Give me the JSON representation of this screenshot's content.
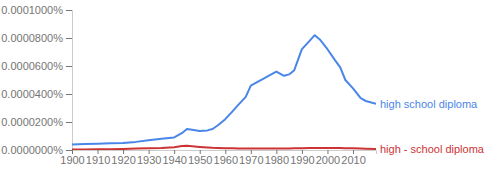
{
  "chart_data": {
    "type": "line",
    "x": [
      1900,
      1905,
      1910,
      1915,
      1920,
      1925,
      1930,
      1935,
      1940,
      1943,
      1945,
      1947,
      1950,
      1953,
      1955,
      1957,
      1960,
      1963,
      1965,
      1968,
      1970,
      1973,
      1975,
      1978,
      1980,
      1983,
      1985,
      1987,
      1990,
      1993,
      1995,
      1997,
      2000,
      2003,
      2005,
      2007,
      2010,
      2013,
      2015,
      2019
    ],
    "series": [
      {
        "name": "high school diploma",
        "color": "#4a86e8",
        "values": [
          4e-06,
          4.2e-06,
          4.5e-06,
          4.8e-06,
          5e-06,
          5.8e-06,
          7e-06,
          8e-06,
          9e-06,
          1.2e-05,
          1.5e-05,
          1.45e-05,
          1.35e-05,
          1.4e-05,
          1.5e-05,
          1.75e-05,
          2.2e-05,
          2.8e-05,
          3.2e-05,
          3.8e-05,
          4.6e-05,
          4.9e-05,
          5.1e-05,
          5.4e-05,
          5.6e-05,
          5.3e-05,
          5.4e-05,
          5.7e-05,
          7.2e-05,
          7.8e-05,
          8.2e-05,
          7.9e-05,
          7.2e-05,
          6.4e-05,
          5.9e-05,
          5e-05,
          4.4e-05,
          3.7e-05,
          3.5e-05,
          3.3e-05
        ]
      },
      {
        "name": "high - school diploma",
        "color": "#cc3333",
        "values": [
          3e-07,
          4e-07,
          5e-07,
          6e-07,
          8e-07,
          1e-06,
          1.2e-06,
          1.4e-06,
          2e-06,
          2.8e-06,
          3e-06,
          2.7e-06,
          2.2e-06,
          1.8e-06,
          1.6e-06,
          1.5e-06,
          1.3e-06,
          1.2e-06,
          1.1e-06,
          1e-06,
          1e-06,
          1e-06,
          1e-06,
          1e-06,
          1e-06,
          1.1e-06,
          1.1e-06,
          1.2e-06,
          1.3e-06,
          1.4e-06,
          1.5e-06,
          1.5e-06,
          1.5e-06,
          1.4e-06,
          1.4e-06,
          1.3e-06,
          1.2e-06,
          1e-06,
          9e-07,
          8e-07
        ]
      }
    ],
    "xlim": [
      1900,
      2019
    ],
    "xticks": [
      1900,
      1910,
      1920,
      1930,
      1940,
      1950,
      1960,
      1970,
      1980,
      1990,
      2000,
      2010
    ],
    "ylim": [
      0,
      0.0001
    ],
    "yticks": [
      {
        "value": 0,
        "label": "0.0000000%"
      },
      {
        "value": 2e-05,
        "label": "0.0000200%"
      },
      {
        "value": 4e-05,
        "label": "0.0000400%"
      },
      {
        "value": 6e-05,
        "label": "0.0000600%"
      },
      {
        "value": 8e-05,
        "label": "0.0000800%"
      },
      {
        "value": 0.0001,
        "label": "0.0001000%"
      }
    ],
    "grid": false
  }
}
